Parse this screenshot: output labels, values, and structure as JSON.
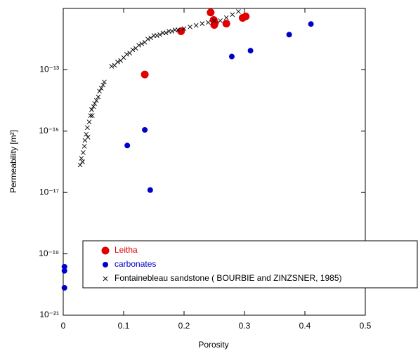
{
  "chart_data": {
    "type": "scatter",
    "xlabel": "Porosity",
    "ylabel": "Permeability [m²]",
    "xlim": [
      0,
      0.5
    ],
    "ylim": [
      1e-21,
      1e-11
    ],
    "xticks": [
      0,
      0.1,
      0.2,
      0.3,
      0.4,
      0.5
    ],
    "yticks": [
      {
        "value": 1e-21,
        "label": "10⁻²¹"
      },
      {
        "value": 1e-19,
        "label": "10⁻¹⁹"
      },
      {
        "value": 1e-17,
        "label": "10⁻¹⁷"
      },
      {
        "value": 1e-15,
        "label": "10⁻¹⁵"
      },
      {
        "value": 1e-13,
        "label": "10⁻¹³"
      }
    ],
    "ylog": true,
    "legend": "lower right",
    "series": [
      {
        "name": "Leitha",
        "color": "#e00000",
        "marker": "circle",
        "x": [
          0.244,
          0.249,
          0.251,
          0.25,
          0.27,
          0.297,
          0.302,
          0.195,
          0.135
        ],
        "values": [
          7.4e-12,
          4.2e-12,
          3.4e-12,
          2.9e-12,
          3.2e-12,
          4.9e-12,
          5.5e-12,
          1.8e-12,
          7e-14
        ]
      },
      {
        "name": "carbonates",
        "color": "#0000cc",
        "marker": "dot",
        "x": [
          0.41,
          0.374,
          0.31,
          0.279,
          0.135,
          0.106,
          0.144,
          0.002,
          0.002,
          0.002
        ],
        "values": [
          3.1e-12,
          1.4e-12,
          4.2e-13,
          2.7e-13,
          1.1e-15,
          3.4e-16,
          1.2e-17,
          3.8e-20,
          2.8e-20,
          7.8e-21
        ]
      },
      {
        "name": "Fontainebleau sandstone ( BOURBIE and ZINZSNER, 1985)",
        "color": "#000000",
        "marker": "x",
        "x": [
          0.028,
          0.03,
          0.032,
          0.033,
          0.035,
          0.036,
          0.038,
          0.04,
          0.041,
          0.043,
          0.045,
          0.047,
          0.048,
          0.05,
          0.052,
          0.055,
          0.058,
          0.06,
          0.063,
          0.066,
          0.068,
          0.08,
          0.085,
          0.09,
          0.095,
          0.1,
          0.105,
          0.11,
          0.115,
          0.12,
          0.125,
          0.13,
          0.135,
          0.14,
          0.145,
          0.15,
          0.155,
          0.16,
          0.165,
          0.17,
          0.175,
          0.18,
          0.185,
          0.19,
          0.2,
          0.21,
          0.22,
          0.23,
          0.24,
          0.25,
          0.26,
          0.27,
          0.28,
          0.29
        ],
        "values": [
          7.9e-17,
          1.3e-16,
          1e-16,
          2e-16,
          3.2e-16,
          5e-16,
          7.9e-16,
          1.3e-15,
          6.3e-16,
          2e-15,
          3.2e-15,
          5e-15,
          3.2e-15,
          6.3e-15,
          7.9e-15,
          1e-14,
          1.3e-14,
          2e-14,
          2.5e-14,
          3.2e-14,
          4e-14,
          1.3e-13,
          1.4e-13,
          1.8e-13,
          2e-13,
          2.5e-13,
          3.2e-13,
          3.5e-13,
          4.5e-13,
          5e-13,
          6.3e-13,
          7e-13,
          7.9e-13,
          1e-12,
          1.1e-12,
          1.3e-12,
          1.3e-12,
          1.4e-12,
          1.6e-12,
          1.6e-12,
          1.8e-12,
          1.8e-12,
          2e-12,
          2e-12,
          2.2e-12,
          2.5e-12,
          2.8e-12,
          3.2e-12,
          3.5e-12,
          4e-12,
          4e-12,
          5e-12,
          6.3e-12,
          7.9e-12
        ]
      }
    ]
  }
}
